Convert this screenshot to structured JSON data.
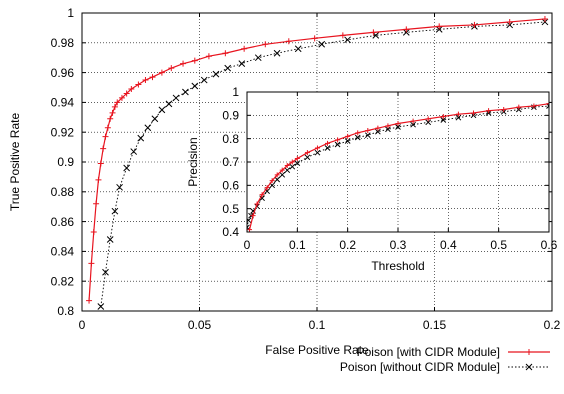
{
  "chart_data": [
    {
      "type": "line",
      "xlabel": "False Positive Rate",
      "ylabel": "True Positive Rate",
      "xlim": [
        0,
        0.2
      ],
      "ylim": [
        0.8,
        1.0
      ],
      "x_ticks": [
        "0",
        "0.05",
        "0.1",
        "0.15",
        "0.2"
      ],
      "y_ticks": [
        "0.8",
        "0.82",
        "0.84",
        "0.86",
        "0.88",
        "0.9",
        "0.92",
        "0.94",
        "0.96",
        "0.98",
        "1"
      ],
      "grid": true,
      "legend_position": "bottom-right, below plot",
      "series": [
        {
          "name": "Poison [with CIDR Module]",
          "color": "#e8141f",
          "line_style": "solid",
          "marker": "plus",
          "points": [
            [
              0.003,
              0.807
            ],
            [
              0.004,
              0.832
            ],
            [
              0.005,
              0.853
            ],
            [
              0.006,
              0.872
            ],
            [
              0.007,
              0.888
            ],
            [
              0.008,
              0.899
            ],
            [
              0.009,
              0.909
            ],
            [
              0.01,
              0.917
            ],
            [
              0.011,
              0.923
            ],
            [
              0.012,
              0.929
            ],
            [
              0.013,
              0.933
            ],
            [
              0.014,
              0.937
            ],
            [
              0.015,
              0.94
            ],
            [
              0.017,
              0.943
            ],
            [
              0.019,
              0.946
            ],
            [
              0.021,
              0.949
            ],
            [
              0.024,
              0.952
            ],
            [
              0.027,
              0.955
            ],
            [
              0.03,
              0.957
            ],
            [
              0.034,
              0.96
            ],
            [
              0.038,
              0.963
            ],
            [
              0.043,
              0.966
            ],
            [
              0.048,
              0.968
            ],
            [
              0.054,
              0.971
            ],
            [
              0.061,
              0.973
            ],
            [
              0.069,
              0.976
            ],
            [
              0.078,
              0.979
            ],
            [
              0.088,
              0.981
            ],
            [
              0.099,
              0.983
            ],
            [
              0.111,
              0.985
            ],
            [
              0.124,
              0.987
            ],
            [
              0.138,
              0.989
            ],
            [
              0.152,
              0.991
            ],
            [
              0.167,
              0.992
            ],
            [
              0.182,
              0.994
            ],
            [
              0.197,
              0.996
            ]
          ]
        },
        {
          "name": "Poison [without CIDR Module]",
          "color": "#000000",
          "line_style": "dotted",
          "marker": "cross",
          "points": [
            [
              0.008,
              0.803
            ],
            [
              0.01,
              0.826
            ],
            [
              0.012,
              0.848
            ],
            [
              0.014,
              0.867
            ],
            [
              0.016,
              0.883
            ],
            [
              0.019,
              0.896
            ],
            [
              0.022,
              0.907
            ],
            [
              0.025,
              0.916
            ],
            [
              0.028,
              0.923
            ],
            [
              0.031,
              0.929
            ],
            [
              0.034,
              0.935
            ],
            [
              0.037,
              0.939
            ],
            [
              0.04,
              0.943
            ],
            [
              0.044,
              0.947
            ],
            [
              0.048,
              0.951
            ],
            [
              0.052,
              0.955
            ],
            [
              0.057,
              0.959
            ],
            [
              0.062,
              0.963
            ],
            [
              0.068,
              0.966
            ],
            [
              0.075,
              0.97
            ],
            [
              0.083,
              0.973
            ],
            [
              0.092,
              0.976
            ],
            [
              0.102,
              0.979
            ],
            [
              0.113,
              0.982
            ],
            [
              0.125,
              0.985
            ],
            [
              0.138,
              0.987
            ],
            [
              0.152,
              0.989
            ],
            [
              0.167,
              0.991
            ],
            [
              0.182,
              0.992
            ],
            [
              0.197,
              0.994
            ]
          ]
        }
      ]
    },
    {
      "type": "line",
      "xlabel": "Threshold",
      "ylabel": "Precision",
      "xlim": [
        0,
        0.6
      ],
      "ylim": [
        0.4,
        1.0
      ],
      "x_ticks": [
        "0",
        "0.1",
        "0.2",
        "0.3",
        "0.4",
        "0.5",
        "0.6"
      ],
      "y_ticks": [
        "0.4",
        "0.5",
        "0.6",
        "0.7",
        "0.8",
        "0.9",
        "1"
      ],
      "grid": true,
      "series": [
        {
          "color": "#e8141f",
          "line_style": "solid",
          "marker": "plus",
          "points": [
            [
              0.005,
              0.41
            ],
            [
              0.012,
              0.47
            ],
            [
              0.02,
              0.52
            ],
            [
              0.03,
              0.56
            ],
            [
              0.04,
              0.59
            ],
            [
              0.05,
              0.62
            ],
            [
              0.06,
              0.645
            ],
            [
              0.07,
              0.665
            ],
            [
              0.08,
              0.685
            ],
            [
              0.09,
              0.7
            ],
            [
              0.1,
              0.715
            ],
            [
              0.12,
              0.74
            ],
            [
              0.14,
              0.76
            ],
            [
              0.16,
              0.78
            ],
            [
              0.18,
              0.795
            ],
            [
              0.2,
              0.81
            ],
            [
              0.22,
              0.825
            ],
            [
              0.24,
              0.835
            ],
            [
              0.26,
              0.845
            ],
            [
              0.28,
              0.855
            ],
            [
              0.3,
              0.865
            ],
            [
              0.33,
              0.875
            ],
            [
              0.36,
              0.885
            ],
            [
              0.39,
              0.895
            ],
            [
              0.42,
              0.905
            ],
            [
              0.45,
              0.91
            ],
            [
              0.48,
              0.92
            ],
            [
              0.51,
              0.925
            ],
            [
              0.54,
              0.935
            ],
            [
              0.57,
              0.94
            ],
            [
              0.6,
              0.95
            ]
          ]
        },
        {
          "color": "#000000",
          "line_style": "dotted",
          "marker": "cross",
          "points": [
            [
              0.0,
              0.42
            ],
            [
              0.003,
              0.45
            ],
            [
              0.008,
              0.47
            ],
            [
              0.012,
              0.49
            ],
            [
              0.02,
              0.51
            ],
            [
              0.03,
              0.545
            ],
            [
              0.04,
              0.575
            ],
            [
              0.05,
              0.6
            ],
            [
              0.06,
              0.625
            ],
            [
              0.07,
              0.645
            ],
            [
              0.08,
              0.665
            ],
            [
              0.09,
              0.68
            ],
            [
              0.1,
              0.695
            ],
            [
              0.12,
              0.72
            ],
            [
              0.14,
              0.74
            ],
            [
              0.16,
              0.76
            ],
            [
              0.18,
              0.775
            ],
            [
              0.2,
              0.79
            ],
            [
              0.22,
              0.805
            ],
            [
              0.24,
              0.815
            ],
            [
              0.26,
              0.83
            ],
            [
              0.28,
              0.84
            ],
            [
              0.3,
              0.85
            ],
            [
              0.33,
              0.86
            ],
            [
              0.36,
              0.87
            ],
            [
              0.39,
              0.88
            ],
            [
              0.42,
              0.89
            ],
            [
              0.45,
              0.9
            ],
            [
              0.48,
              0.91
            ],
            [
              0.51,
              0.915
            ],
            [
              0.54,
              0.925
            ],
            [
              0.57,
              0.935
            ],
            [
              0.6,
              0.94
            ]
          ]
        }
      ]
    }
  ]
}
